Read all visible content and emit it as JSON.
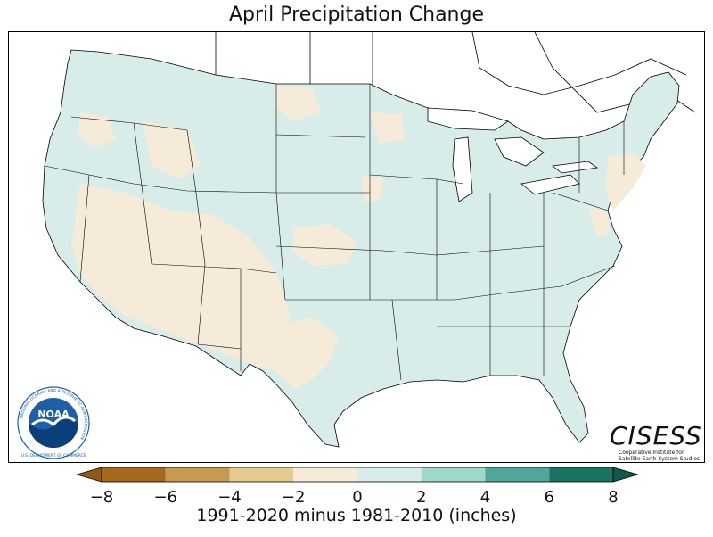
{
  "title": "April Precipitation Change",
  "colorbar": {
    "label": "1991-2020 minus 1981-2010 (inches)",
    "min": -8,
    "max": 8,
    "extend": "both",
    "ticks": [
      "−8",
      "−6",
      "−4",
      "−2",
      "0",
      "2",
      "4",
      "6",
      "8"
    ],
    "bins": [
      {
        "from": -8,
        "to": -6,
        "color": "#a5681c"
      },
      {
        "from": -6,
        "to": -4,
        "color": "#c89a4f"
      },
      {
        "from": -4,
        "to": -2,
        "color": "#e6cb8f"
      },
      {
        "from": -2,
        "to": 0,
        "color": "#f6ebd9"
      },
      {
        "from": 0,
        "to": 2,
        "color": "#d8ede9"
      },
      {
        "from": 2,
        "to": 4,
        "color": "#9ed8cc"
      },
      {
        "from": 4,
        "to": 6,
        "color": "#4fa69b"
      },
      {
        "from": 6,
        "to": 8,
        "color": "#1a7464"
      }
    ],
    "under_color": "#8f5a14",
    "over_color": "#0f5a4b"
  },
  "map": {
    "region": "Contiguous United States",
    "base_fill": "#d8ede9",
    "drier_fill": "#f6ebd9",
    "lake_fill": "#ffffff",
    "border_color": "#000000"
  },
  "logos": {
    "noaa": {
      "text": "NOAA",
      "ring_text": "NATIONAL OCEANIC AND ATMOSPHERIC ADMINISTRATION",
      "bottom_text": "U.S. DEPARTMENT OF COMMERCE",
      "color": "#1d5fa8"
    },
    "cisess": {
      "name": "CISESS",
      "line1": "Cooperative Institute for",
      "line2": "Satellite Earth System Studies"
    }
  }
}
